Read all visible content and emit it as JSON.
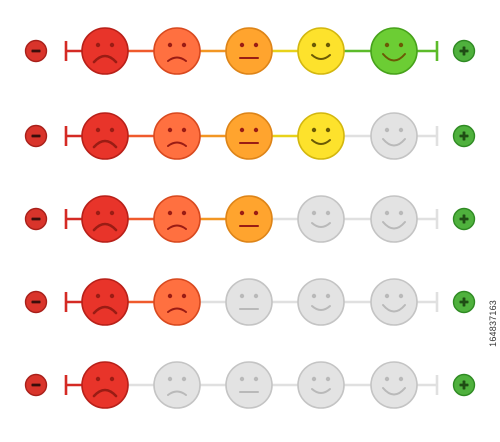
{
  "colors": {
    "level": [
      "#d42a24",
      "#ef5a2c",
      "#f29623",
      "#e8d21a",
      "#5cbb2a"
    ],
    "face_fill": [
      "#e8342a",
      "#ff7040",
      "#ffa42e",
      "#fde22c",
      "#6ccd34"
    ],
    "face_stroke": [
      "#b82019",
      "#d8491f",
      "#dd8418",
      "#d3b70f",
      "#47a21b"
    ],
    "inactive_fill": "#e3e3e3",
    "inactive_stroke": "#c4c4c4",
    "inactive_feature": "#b9b9b9",
    "inactive_line": "#e0e0e0",
    "feature": "#9a1c14",
    "minus_fill": "#d9342b",
    "plus_fill": "#4fb13d"
  },
  "faces": [
    {
      "mood": "very-sad"
    },
    {
      "mood": "sad"
    },
    {
      "mood": "neutral"
    },
    {
      "mood": "happy"
    },
    {
      "mood": "very-happy"
    }
  ],
  "scales": [
    {
      "rating": 5,
      "max": 5
    },
    {
      "rating": 4,
      "max": 5
    },
    {
      "rating": 3,
      "max": 5
    },
    {
      "rating": 2,
      "max": 5
    },
    {
      "rating": 1,
      "max": 5
    }
  ],
  "icons": {
    "minus": "minus-icon",
    "plus": "plus-icon",
    "face": "smiley-face-icon"
  },
  "stock_id": "164837163"
}
